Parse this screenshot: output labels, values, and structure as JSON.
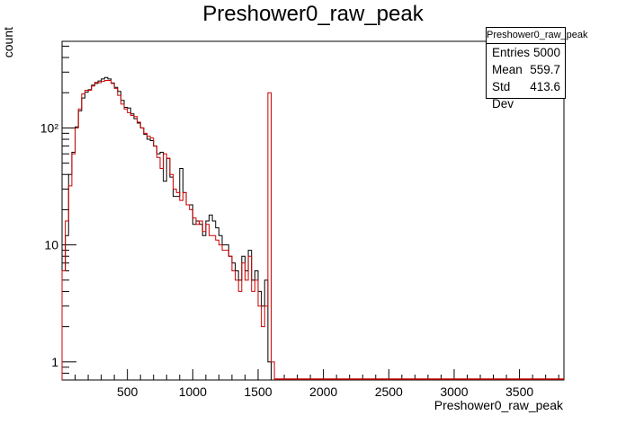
{
  "chart_data": {
    "type": "histogram",
    "title": "Preshower0_raw_peak",
    "xlabel": "Preshower0_raw_peak",
    "ylabel": "count",
    "xlim": [
      0,
      3840
    ],
    "ylim": [
      0.7,
      550
    ],
    "yscale": "log",
    "bin_width": 25,
    "x_ticks": [
      500,
      1000,
      1500,
      2000,
      2500,
      3000,
      3500
    ],
    "y_ticks": [
      {
        "value": 1,
        "label": "1"
      },
      {
        "value": 10,
        "label": "10"
      },
      {
        "value": 100,
        "label": "10²"
      }
    ],
    "series": [
      {
        "color": "#000000",
        "bins_start": 0,
        "values": [
          6,
          12,
          40,
          62,
          102,
          140,
          180,
          202,
          212,
          232,
          240,
          252,
          262,
          270,
          262,
          242,
          222,
          205,
          172,
          150,
          148,
          132,
          120,
          110,
          100,
          88,
          80,
          78,
          70,
          60,
          62,
          35,
          55,
          38,
          26,
          26,
          45,
          28,
          22,
          22,
          15,
          16,
          15,
          12,
          16,
          18,
          16,
          14,
          12,
          10,
          10,
          8,
          7,
          6,
          5,
          8,
          6,
          9,
          5,
          6,
          4,
          3,
          5,
          1
        ],
        "overflow_bins": [
          {
            "start": 1900,
            "count": 0
          }
        ]
      },
      {
        "color": "#cc0000",
        "bins_start": 0,
        "values": [
          6,
          16,
          32,
          60,
          100,
          145,
          195,
          210,
          210,
          228,
          245,
          244,
          250,
          255,
          255,
          240,
          218,
          190,
          160,
          145,
          135,
          128,
          125,
          112,
          100,
          90,
          85,
          82,
          70,
          56,
          45,
          60,
          55,
          40,
          30,
          28,
          24,
          28,
          22,
          20,
          17,
          15,
          16,
          13,
          15,
          12,
          12,
          11,
          10,
          9,
          9,
          8,
          6,
          5,
          4,
          7,
          5,
          8,
          4,
          5,
          3,
          2,
          3,
          200,
          1
        ]
      }
    ]
  },
  "stats": {
    "title": "Preshower0_raw_peak",
    "rows": [
      {
        "label": "Entries",
        "value": "5000"
      },
      {
        "label": "Mean",
        "value": "559.7"
      },
      {
        "label": "Std Dev",
        "value": "413.6"
      }
    ]
  }
}
